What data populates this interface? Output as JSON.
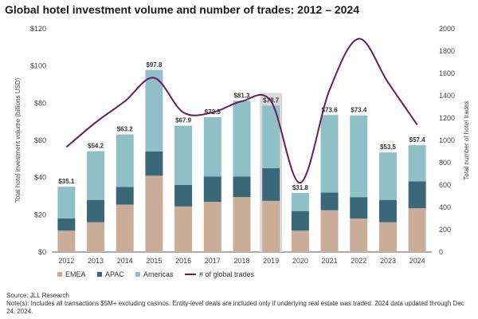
{
  "title": "Global hotel investment volume and number of trades: 2012 – 2024",
  "footer": {
    "source": "Source: JLL Research",
    "notes": "Note(s): Includes all transactions $5M+ excluding casinos. Entity-level deals are included only if underlying real estate was traded. 2024 data updated through Dec 24, 2024."
  },
  "colors": {
    "emea": "#c9ad98",
    "apac": "#3a6878",
    "americas": "#8fc0c7",
    "trades_line": "#6b1b5c",
    "highlight": "#d9d9d9"
  },
  "chart_data": {
    "type": "bar",
    "stacked": true,
    "categories": [
      "2012",
      "2013",
      "2014",
      "2015",
      "2016",
      "2017",
      "2018",
      "2019",
      "2020",
      "2021",
      "2022",
      "2023",
      "2024"
    ],
    "series": [
      {
        "name": "EMEA",
        "axis": "left",
        "values": [
          11.5,
          16,
          25.5,
          41,
          24.5,
          27,
          29.5,
          27.5,
          11.5,
          22.5,
          18,
          16,
          23.5
        ]
      },
      {
        "name": "APAC",
        "axis": "left",
        "values": [
          6.5,
          12,
          9.5,
          13,
          11.5,
          13.5,
          11,
          17.5,
          10.5,
          9.5,
          11.5,
          12,
          14.5
        ]
      },
      {
        "name": "Americas",
        "axis": "left",
        "values": [
          17.1,
          26.2,
          28.2,
          43.8,
          31.9,
          32,
          40.8,
          33.7,
          9.8,
          41.6,
          43.9,
          25.5,
          19.4
        ]
      },
      {
        "name": "# of global trades",
        "axis": "right",
        "type": "line",
        "values": [
          940,
          1160,
          1350,
          1560,
          1250,
          1250,
          1350,
          1350,
          620,
          1450,
          1910,
          1520,
          1140
        ]
      }
    ],
    "totals": [
      35.1,
      54.2,
      63.2,
      97.8,
      67.9,
      72.5,
      81.3,
      78.7,
      31.8,
      73.6,
      73.4,
      53.5,
      57.4
    ],
    "total_labels": [
      "$35.1",
      "$54.2",
      "$63.2",
      "$97.8",
      "$67.9",
      "$72.5",
      "$81.3",
      "$78.7",
      "$31.8",
      "$73.6",
      "$73.4",
      "$53.5",
      "$57.4"
    ],
    "highlighted_category": "2019",
    "ylabel": "Total hotel investment volume (billions USD)",
    "y2label": "Total number of hotel trades",
    "ylim": [
      0,
      120
    ],
    "y2lim": [
      0,
      2000
    ],
    "yticks": [
      "$0",
      "$20",
      "$40",
      "$60",
      "$80",
      "$100",
      "$120"
    ],
    "y2ticks": [
      "0",
      "200",
      "400",
      "600",
      "800",
      "1000",
      "1200",
      "1400",
      "1600",
      "1800",
      "2000"
    ],
    "legend": [
      "EMEA",
      "APAC",
      "Americas",
      "# of global trades"
    ],
    "legend_position": "bottom-left",
    "grid": false
  }
}
